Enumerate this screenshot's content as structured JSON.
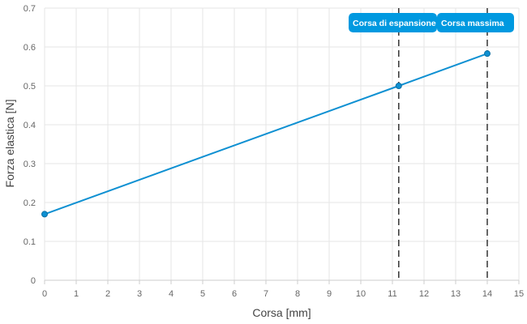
{
  "chart_data": {
    "type": "line",
    "title": "",
    "xlabel": "Corsa [mm]",
    "ylabel": "Forza elastica [N]",
    "xlim": [
      0,
      15
    ],
    "ylim": [
      0,
      0.7
    ],
    "x_ticks": [
      "0",
      "1",
      "2",
      "3",
      "4",
      "5",
      "6",
      "7",
      "8",
      "9",
      "10",
      "11",
      "12",
      "13",
      "14",
      "15"
    ],
    "y_ticks": [
      "0",
      "0.1",
      "0.2",
      "0.3",
      "0.4",
      "0.5",
      "0.6",
      "0.7"
    ],
    "grid": true,
    "series": [
      {
        "points": [
          {
            "x": 0,
            "y": 0.17
          },
          {
            "x": 11.2,
            "y": 0.5
          },
          {
            "x": 14,
            "y": 0.583
          }
        ],
        "color": "#0e90d2"
      }
    ],
    "annotations": [
      {
        "label": "Corsa di espansione",
        "x": 11.2,
        "style": "dashed-vertical-line"
      },
      {
        "label": "Corsa massima",
        "x": 14,
        "style": "dashed-vertical-line"
      }
    ],
    "colors": {
      "line": "#0e90d2",
      "label_bg": "#0099e0",
      "marker_line": "#333333",
      "grid": "#e6e6e6"
    }
  }
}
